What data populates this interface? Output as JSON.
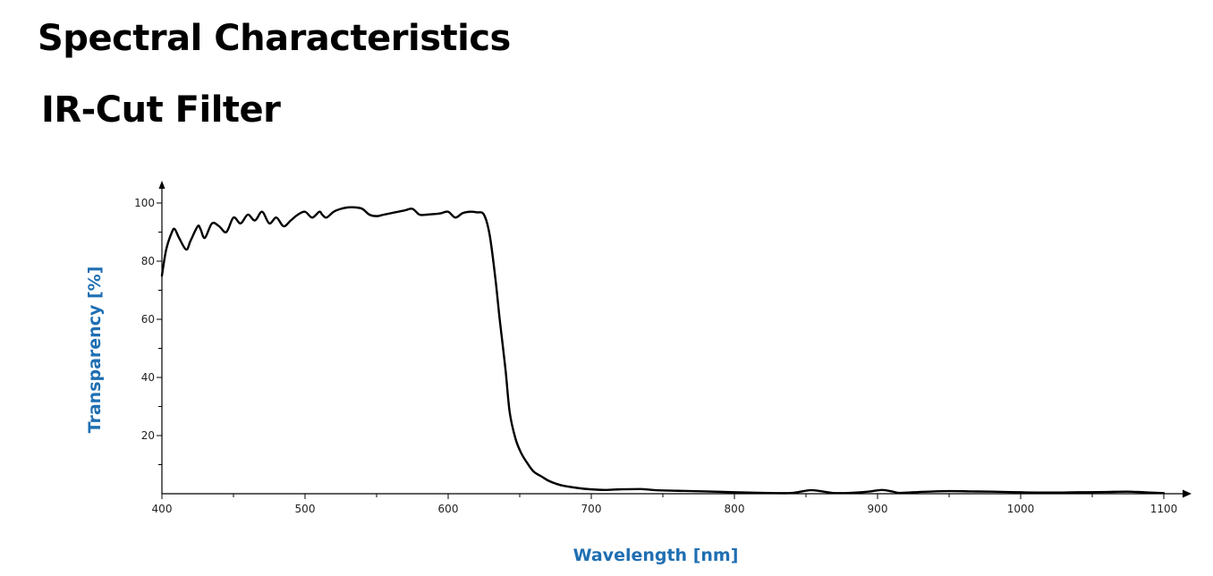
{
  "page": {
    "title": "Spectral Characteristics",
    "subtitle": "IR-Cut Filter"
  },
  "colors": {
    "axis_title": "#1f6fb2",
    "curve": "#000000",
    "axis": "#000000"
  },
  "chart_data": {
    "type": "line",
    "title": "",
    "xlabel": "Wavelength [nm]",
    "ylabel": "Transparency [%]",
    "xlim": [
      400,
      1100
    ],
    "ylim": [
      0,
      100
    ],
    "xticks": [
      400,
      500,
      600,
      700,
      800,
      900,
      1000,
      1100
    ],
    "yticks": [
      20,
      40,
      60,
      80,
      100
    ],
    "grid": false,
    "legend": "none",
    "series": [
      {
        "x": [
          400,
          403,
          407,
          409,
          412,
          417,
          420,
          425,
          427,
          430,
          435,
          440,
          445,
          450,
          455,
          460,
          465,
          470,
          475,
          480,
          485,
          490,
          495,
          500,
          505,
          510,
          512,
          515,
          520,
          525,
          530,
          535,
          540,
          545,
          550,
          555,
          560,
          565,
          570,
          575,
          580,
          585,
          590,
          595,
          600,
          605,
          610,
          615,
          620,
          625,
          629,
          633,
          636,
          640,
          643,
          647,
          651,
          656,
          660,
          665,
          670,
          675,
          680,
          690,
          700,
          710,
          720,
          735,
          745,
          760,
          780,
          800,
          820,
          838,
          845,
          853,
          860,
          868,
          875,
          885,
          895,
          903,
          910,
          915,
          925,
          935,
          950,
          965,
          980,
          1000,
          1020,
          1040,
          1060,
          1075,
          1090,
          1100
        ],
        "y": [
          75,
          84,
          90,
          91,
          88,
          84,
          87,
          92,
          91,
          88,
          93,
          92,
          90,
          95,
          93,
          96,
          94,
          97,
          93,
          95,
          92,
          94,
          96,
          97,
          95,
          97,
          96,
          95,
          97,
          98,
          98.5,
          98.5,
          98,
          96,
          95.5,
          96,
          96.5,
          97,
          97.5,
          98,
          96,
          96,
          96.2,
          96.5,
          97,
          95,
          96.5,
          97,
          96.8,
          96,
          89,
          74,
          60,
          43,
          28,
          19,
          14,
          10,
          7.5,
          6,
          4.5,
          3.5,
          2.8,
          2.0,
          1.5,
          1.3,
          1.5,
          1.6,
          1.2,
          1.0,
          0.8,
          0.5,
          0.3,
          0.2,
          0.6,
          1.2,
          0.9,
          0.3,
          0.2,
          0.4,
          0.8,
          1.3,
          0.8,
          0.3,
          0.5,
          0.7,
          0.9,
          0.8,
          0.7,
          0.5,
          0.4,
          0.5,
          0.6,
          0.7,
          0.4,
          0.2
        ]
      }
    ]
  }
}
